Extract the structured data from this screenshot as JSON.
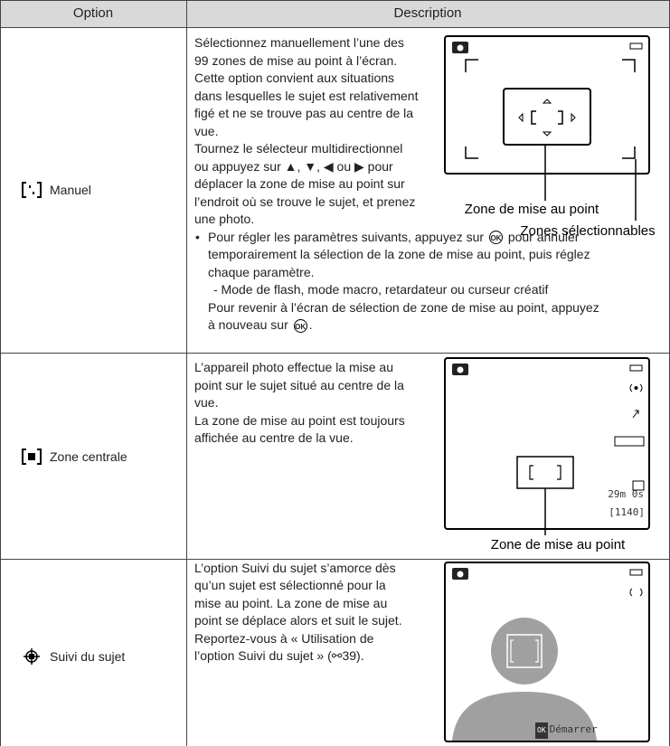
{
  "table": {
    "header": {
      "option": "Option",
      "description": "Description"
    },
    "rows": [
      {
        "option": "Manuel",
        "lines": [
          "Sélectionnez manuellement l’une des",
          "99 zones de mise au point à l’écran.",
          "Cette option convient aux situations",
          "dans lesquelles le sujet est relativement",
          "figé et ne se trouve pas au centre de la",
          "vue.",
          "Tournez le sélecteur multidirectionnel",
          "ou appuyez sur ▲, ▼, ◀ ou ▶ pour",
          "déplacer la zone de mise au point sur",
          "l’endroit où se trouve le sujet, et prenez",
          "une photo."
        ],
        "bullet": {
          "before": "Pour régler les paramètres suivants, appuyez sur",
          "ok": "OK",
          "after": "pour annuler",
          "lines": [
            "temporairement la sélection de la zone de mise au point, puis réglez",
            "chaque paramètre."
          ],
          "sub_item": "-  Mode de flash, mode macro, retardateur ou curseur créatif",
          "return_line": "Pour revenir à l’écran de sélection de zone de mise au point, appuyez",
          "return_end": "à nouveau sur",
          "return_ok": "OK",
          "return_punct": "."
        },
        "figure_labels": [
          "Zone de mise au point",
          "Zones sélectionnables"
        ]
      },
      {
        "option": "Zone centrale",
        "lines": [
          "L’appareil photo effectue la mise au",
          "point sur le sujet situé au centre de la",
          "vue.",
          "La zone de mise au point est toujours",
          "affichée au centre de la vue."
        ],
        "screen_texts": [
          "29m 0s",
          "[1140]"
        ],
        "figure_labels": [
          "Zone de mise au point"
        ]
      },
      {
        "option": "Suivi du sujet",
        "lines": [
          "L’option Suivi du sujet s’amorce dès",
          "qu’un sujet est sélectionné pour la",
          "mise au point. La zone de mise au",
          "point se déplace alors et suit le sujet.",
          "Reportez-vous à « Utilisation de",
          "l’option Suivi du sujet » (⚯39)."
        ],
        "screen_ok": "OK",
        "screen_text": "Démarrer"
      }
    ]
  }
}
